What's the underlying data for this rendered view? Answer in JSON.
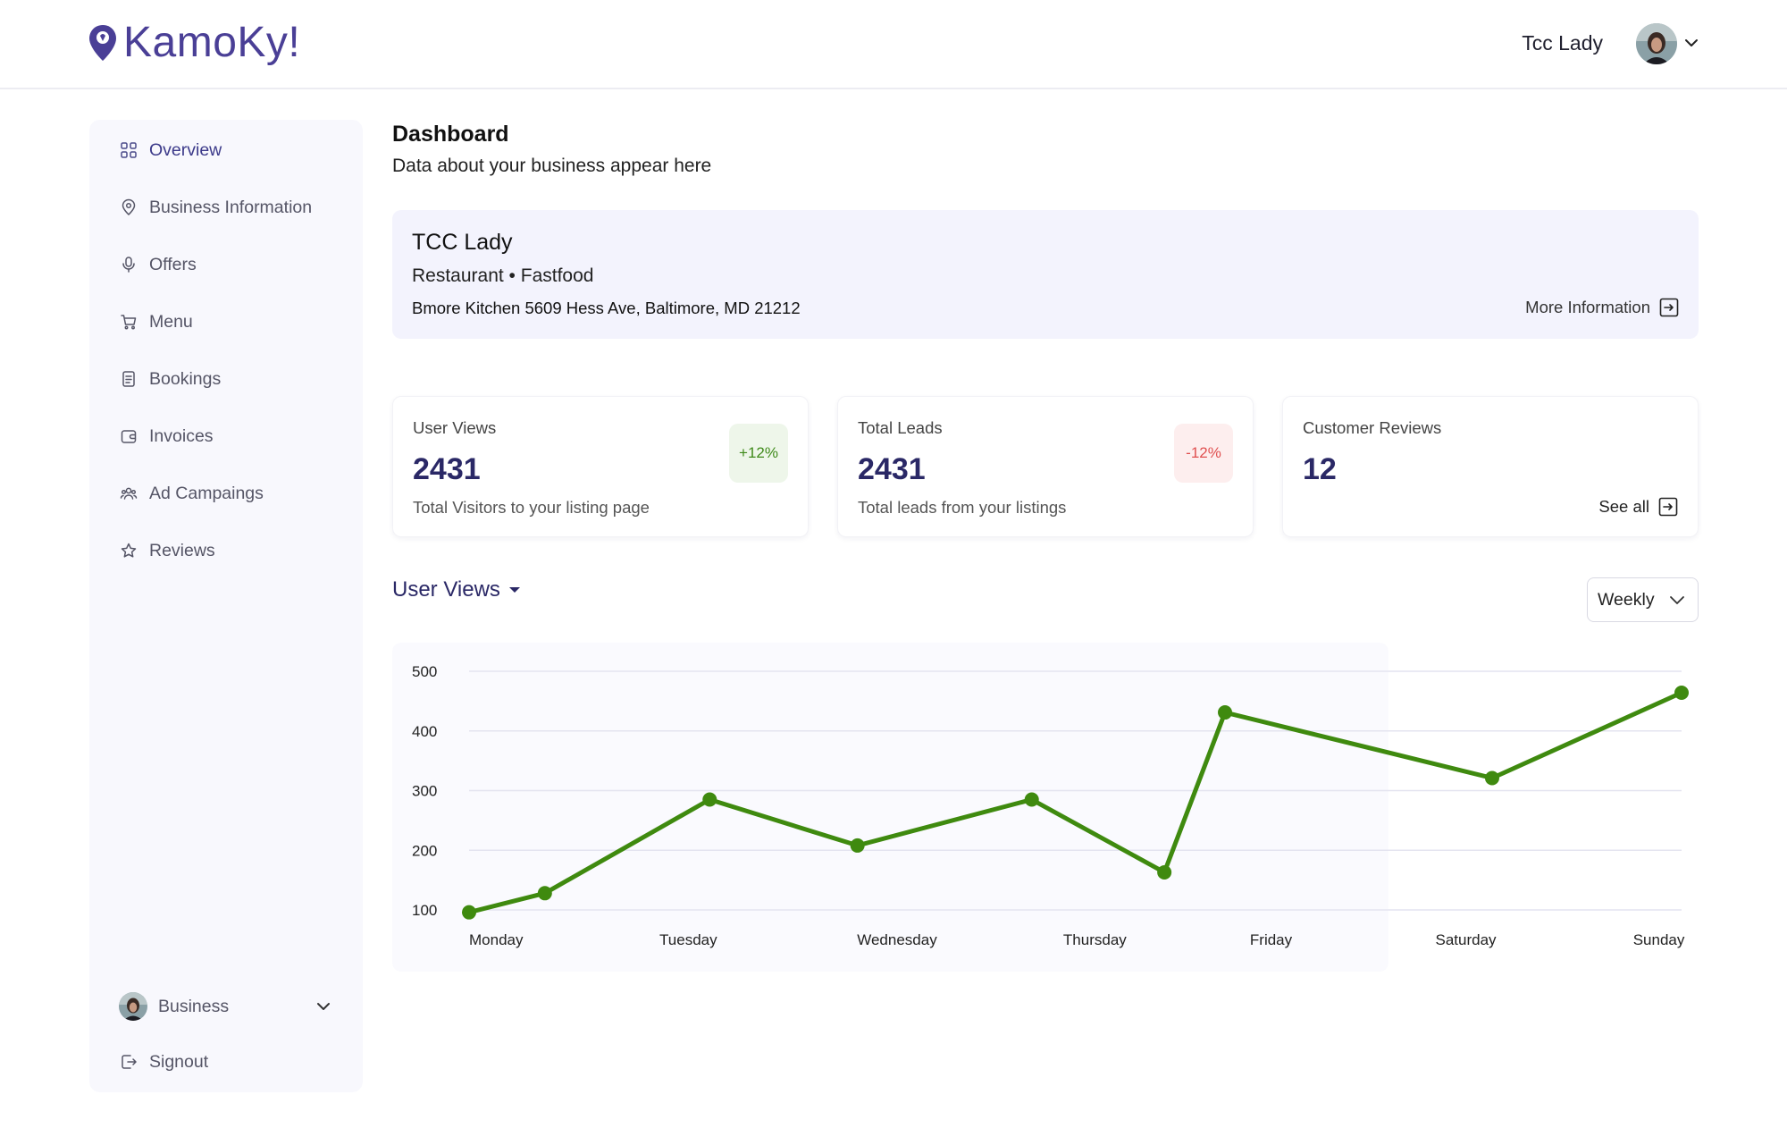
{
  "app": {
    "logo_text": "KamoKy!",
    "brand_color": "#4a3f96"
  },
  "header": {
    "user_name": "Tcc Lady"
  },
  "sidebar": {
    "items": [
      {
        "label": "Overview",
        "icon": "grid-icon",
        "active": true
      },
      {
        "label": "Business Information",
        "icon": "location-pin-icon",
        "active": false
      },
      {
        "label": "Offers",
        "icon": "microphone-icon",
        "active": false
      },
      {
        "label": "Menu",
        "icon": "cart-icon",
        "active": false
      },
      {
        "label": "Bookings",
        "icon": "document-icon",
        "active": false
      },
      {
        "label": "Invoices",
        "icon": "wallet-icon",
        "active": false
      },
      {
        "label": "Ad Campaings",
        "icon": "users-icon",
        "active": false
      },
      {
        "label": "Reviews",
        "icon": "star-icon",
        "active": false
      }
    ],
    "business_switch": "Business",
    "signout": "Signout"
  },
  "main": {
    "title": "Dashboard",
    "subtitle": "Data about your business appear here",
    "business": {
      "name": "TCC Lady",
      "category": "Restaurant • Fastfood",
      "address": "Bmore Kitchen 5609 Hess Ave, Baltimore, MD 21212",
      "more_info": "More Information"
    },
    "stats": [
      {
        "label": "User Views",
        "value": "2431",
        "desc": "Total Visitors to your listing page",
        "badge": "+12%",
        "trend": "up"
      },
      {
        "label": "Total Leads",
        "value": "2431",
        "desc": "Total leads from your listings",
        "badge": "-12%",
        "trend": "down"
      },
      {
        "label": "Customer Reviews",
        "value": "12",
        "link": "See all"
      }
    ],
    "chart_selector": "User Views",
    "period": "Weekly"
  },
  "chart_data": {
    "type": "line",
    "x_labels": [
      "Monday",
      "Tuesday",
      "Wednesday",
      "Thursday",
      "Friday",
      "Saturday",
      "Sunday"
    ],
    "points": [
      {
        "x": 0.0,
        "y": 96
      },
      {
        "x": 0.4,
        "y": 128
      },
      {
        "x": 1.27,
        "y": 285
      },
      {
        "x": 2.05,
        "y": 208
      },
      {
        "x": 2.97,
        "y": 285
      },
      {
        "x": 3.67,
        "y": 163
      },
      {
        "x": 3.99,
        "y": 431
      },
      {
        "x": 5.4,
        "y": 321
      },
      {
        "x": 6.4,
        "y": 464
      }
    ],
    "yticks": [
      100,
      200,
      300,
      400,
      500
    ],
    "ylim": [
      100,
      500
    ],
    "line_color": "#3f8a0f",
    "grid": true
  }
}
